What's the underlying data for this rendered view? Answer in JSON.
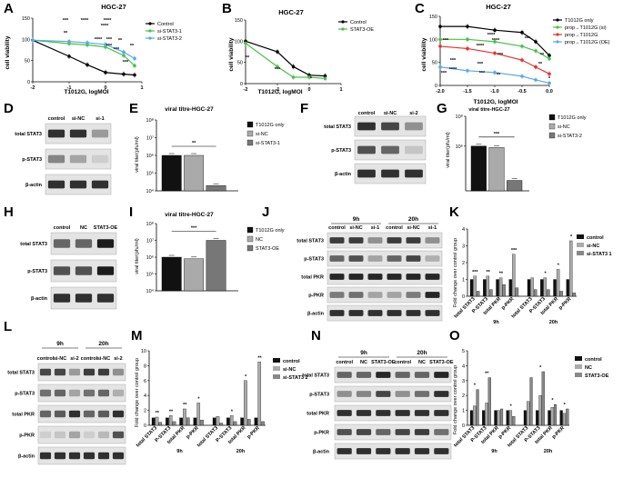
{
  "panels": {
    "A": {
      "letter": "A",
      "title": "HGC-27",
      "ylabel": "cell viability",
      "xlabel": "T1012G, logMOI",
      "yticks": [
        "150",
        "100",
        "50",
        "0"
      ],
      "xticks": [
        "-2",
        "-1",
        "0",
        "1"
      ],
      "legend": [
        "Control",
        "si-STAT3-1",
        "si-STAT3-2"
      ],
      "colors": [
        "#000000",
        "#47c247",
        "#5aa7e8"
      ],
      "stars": [
        "***",
        "**",
        "****",
        "****",
        "***",
        "***",
        "****",
        "****",
        "***",
        "**",
        "***",
        "**"
      ]
    },
    "B": {
      "letter": "B",
      "title": "HGC-27",
      "ylabel": "cell viability",
      "xlabel": "T1012G, logMOI",
      "yticks": [
        "150",
        "100",
        "50",
        "0"
      ],
      "xticks": [
        "-2",
        "-1",
        "0",
        "1"
      ],
      "legend": [
        "Control",
        "STAT3-OE"
      ],
      "colors": [
        "#000000",
        "#47c247"
      ],
      "stars": [
        "**",
        "***",
        "*"
      ]
    },
    "C": {
      "letter": "C",
      "title": "HGC-27",
      "ylabel": "cell viability",
      "xlabel": "T1012G, logMOI",
      "yticks": [
        "150",
        "100",
        "50",
        "0"
      ],
      "xticks": [
        "-2.0",
        "-1.5",
        "-1.0",
        "-0.5",
        "0.0"
      ],
      "legend": [
        "T1012G only",
        "prop→T1012G (si)",
        "prop→T1012G",
        "prop→T1012G (OE)"
      ],
      "colors": [
        "#000000",
        "#47c247",
        "#e8302a",
        "#5aa7e8"
      ],
      "stars": [
        "***",
        "***",
        "****",
        "****",
        "****",
        "****",
        "***",
        "***",
        "***",
        "**",
        "***",
        "***",
        "**",
        "**",
        "*"
      ]
    },
    "D": {
      "letter": "D",
      "lanes": [
        "control",
        "si-NC",
        "si-1"
      ],
      "rows": [
        "total STAT3",
        "p-STAT3",
        "β-actin"
      ]
    },
    "E": {
      "letter": "E",
      "title": "viral titre-HGC-27",
      "ylabel": "viral titer(pfu/ml)",
      "yticks": [
        "10⁸",
        "10⁷",
        "10⁶",
        "10⁵",
        "10⁴"
      ],
      "legend": [
        "T1012G only",
        "si-NC",
        "si-STAT3-1"
      ],
      "colors": [
        "#111111",
        "#aaaaaa",
        "#777777"
      ],
      "sig": "**"
    },
    "F": {
      "letter": "F",
      "lanes": [
        "control",
        "si-NC",
        "si-2"
      ],
      "rows": [
        "total STAT3",
        "p-STAT3",
        "β-actin"
      ]
    },
    "G": {
      "letter": "G",
      "title": "viral titre-HGC-27",
      "ylabel": "viral titer(pfu/ml)",
      "yticks": [
        "10⁸",
        "10⁶"
      ],
      "legend": [
        "T1012G only",
        "si-NC",
        "si-STAT3-2"
      ],
      "colors": [
        "#111111",
        "#aaaaaa",
        "#777777"
      ],
      "sig": "***"
    },
    "H": {
      "letter": "H",
      "lanes": [
        "control",
        "NC",
        "STAT3-OE"
      ],
      "rows": [
        "total STAT3",
        "p-STAT3",
        "β-actin"
      ]
    },
    "I": {
      "letter": "I",
      "title": "viral titre-HGC-27",
      "ylabel": "viral titer(pfu/ml)",
      "yticks": [
        "10⁸",
        "10⁷",
        "10⁶",
        "10⁵",
        "10⁴"
      ],
      "legend": [
        "T1012G only",
        "NC",
        "STAT3-OE"
      ],
      "colors": [
        "#111111",
        "#aaaaaa",
        "#777777"
      ],
      "sig": "***"
    },
    "J": {
      "letter": "J",
      "times": [
        "9h",
        "20h"
      ],
      "lanes": [
        "control",
        "si-NC",
        "si-1",
        "control",
        "si-NC",
        "si-1"
      ],
      "rows": [
        "total STAT3",
        "p-STAT3",
        "total PKR",
        "p-PKR",
        "β-actin"
      ]
    },
    "K": {
      "letter": "K",
      "ylabel": "Fold change over control group",
      "yticks": [
        "4",
        "3",
        "2",
        "1",
        "0"
      ],
      "legend": [
        "control",
        "si-NC",
        "si-STAT3 1"
      ],
      "colors": [
        "#111111",
        "#aaaaaa",
        "#888888"
      ],
      "cats": [
        "total STAT3",
        "P-STAT3",
        "total PKR",
        "p-PKR",
        "total STAT3",
        "P-STAT3",
        "total PKR",
        "p-PKR"
      ],
      "groups": [
        "9h",
        "20h"
      ],
      "stars": [
        "***",
        "**",
        "***",
        "*",
        "*",
        "*",
        "**"
      ]
    },
    "L": {
      "letter": "L",
      "times": [
        "9h",
        "20h"
      ],
      "lanes": [
        "control",
        "si-NC",
        "si-2",
        "control",
        "si-NC",
        "si-2"
      ],
      "rows": [
        "total STAT3",
        "p-STAT3",
        "total PKR",
        "p-PKR",
        "β-actin"
      ]
    },
    "M": {
      "letter": "M",
      "ylabel": "Fold change over control group",
      "yticks": [
        "10",
        "8",
        "6",
        "4",
        "2",
        "0"
      ],
      "legend": [
        "control",
        "si-NC",
        "si-STAT3 2"
      ],
      "colors": [
        "#111111",
        "#aaaaaa",
        "#888888"
      ],
      "cats": [
        "total STAT3",
        "P-STAT3",
        "total PKR",
        "p-PKR",
        "total STAT3",
        "P-STAT3",
        "total PKR",
        "p-PKR"
      ],
      "groups": [
        "9h",
        "20h"
      ],
      "stars": [
        "**",
        "**",
        "*",
        "*",
        "*",
        "**",
        "**"
      ]
    },
    "N": {
      "letter": "N",
      "times": [
        "9h",
        "20h"
      ],
      "lanes": [
        "control",
        "NC",
        "STAT3-OE",
        "control",
        "NC",
        "STAT3-OE"
      ],
      "rows": [
        "total STAT3",
        "p-STAT3",
        "total PKR",
        "p-PKR",
        "β-actin"
      ]
    },
    "O": {
      "letter": "O",
      "ylabel": "Fold change over control group",
      "yticks": [
        "5",
        "4",
        "3",
        "2",
        "1",
        "0"
      ],
      "legend": [
        "control",
        "NC",
        "STAT3-OE"
      ],
      "colors": [
        "#111111",
        "#aaaaaa",
        "#888888"
      ],
      "cats": [
        "total STAT3",
        "P-STAT3",
        "total PKR",
        "p-PKR",
        "total STAT3",
        "P-STAT3",
        "total PKR",
        "p-PKR"
      ],
      "groups": [
        "9h",
        "20h"
      ],
      "stars": [
        "*",
        "**",
        "*",
        "*",
        "*",
        "*"
      ]
    }
  },
  "chart_data": [
    {
      "panel": "A",
      "type": "line",
      "title": "HGC-27",
      "xlabel": "T1012G, logMOI",
      "ylabel": "cell viability",
      "xlim": [
        -2,
        1
      ],
      "ylim": [
        0,
        150
      ],
      "series": [
        {
          "name": "Control",
          "x": [
            -2,
            -1,
            -0.5,
            0,
            0.5,
            0.8
          ],
          "y": [
            98,
            60,
            40,
            22,
            18,
            16
          ]
        },
        {
          "name": "si-STAT3-1",
          "x": [
            -2,
            -1,
            -0.5,
            0,
            0.5,
            0.8
          ],
          "y": [
            98,
            90,
            87,
            82,
            62,
            38
          ]
        },
        {
          "name": "si-STAT3-2",
          "x": [
            -2,
            -1,
            -0.5,
            0,
            0.5,
            0.8
          ],
          "y": [
            98,
            95,
            92,
            88,
            70,
            55
          ]
        }
      ]
    },
    {
      "panel": "B",
      "type": "line",
      "title": "HGC-27",
      "xlabel": "T1012G, logMOI",
      "ylabel": "cell viability",
      "xlim": [
        -2,
        1
      ],
      "ylim": [
        0,
        150
      ],
      "series": [
        {
          "name": "Control",
          "x": [
            -2,
            -1,
            -0.5,
            0,
            0.5
          ],
          "y": [
            100,
            75,
            40,
            20,
            18
          ]
        },
        {
          "name": "STAT3-OE",
          "x": [
            -2,
            -1,
            -0.5,
            0,
            0.5
          ],
          "y": [
            95,
            40,
            15,
            15,
            12
          ]
        }
      ]
    },
    {
      "panel": "C",
      "type": "line",
      "title": "HGC-27",
      "xlabel": "T1012G, logMOI",
      "ylabel": "cell viability",
      "xlim": [
        -2,
        0
      ],
      "ylim": [
        0,
        150
      ],
      "series": [
        {
          "name": "T1012G only",
          "x": [
            -2,
            -1.5,
            -1.0,
            -0.5,
            -0.25,
            0
          ],
          "y": [
            128,
            128,
            120,
            115,
            95,
            65
          ]
        },
        {
          "name": "prop→T1012G (si)",
          "x": [
            -2,
            -1.5,
            -1.0,
            -0.5,
            -0.25,
            0
          ],
          "y": [
            100,
            100,
            95,
            85,
            75,
            58
          ]
        },
        {
          "name": "prop→T1012G",
          "x": [
            -2,
            -1.5,
            -1.0,
            -0.5,
            -0.25,
            0
          ],
          "y": [
            85,
            80,
            70,
            55,
            40,
            25
          ]
        },
        {
          "name": "prop→T1012G (OE)",
          "x": [
            -2,
            -1.5,
            -1.0,
            -0.5,
            -0.25,
            0
          ],
          "y": [
            40,
            32,
            28,
            20,
            12,
            5
          ]
        }
      ]
    },
    {
      "panel": "E",
      "type": "bar",
      "title": "viral titre-HGC-27",
      "ylabel": "viral titer(pfu/ml)",
      "yscale": "log",
      "ylim": [
        10000,
        100000000
      ],
      "categories": [
        "T1012G only",
        "si-NC",
        "si-STAT3-1"
      ],
      "values": [
        1000000,
        1000000,
        20000
      ]
    },
    {
      "panel": "G",
      "type": "bar",
      "title": "viral titre-HGC-27",
      "ylabel": "viral titer(pfu/ml)",
      "yscale": "log",
      "ylim": [
        1000,
        100000000
      ],
      "categories": [
        "T1012G only",
        "si-NC",
        "si-STAT3-2"
      ],
      "values": [
        1000000,
        800000,
        5000
      ]
    },
    {
      "panel": "I",
      "type": "bar",
      "title": "viral titre-HGC-27",
      "ylabel": "viral titer(pfu/ml)",
      "yscale": "log",
      "ylim": [
        10000,
        100000000
      ],
      "categories": [
        "T1012G only",
        "NC",
        "STAT3-OE"
      ],
      "values": [
        1000000,
        800000,
        10000000
      ]
    },
    {
      "panel": "K",
      "type": "bar",
      "ylabel": "Fold change over control group",
      "ylim": [
        0,
        4
      ],
      "categories": [
        "total STAT3",
        "P-STAT3",
        "total PKR",
        "p-PKR",
        "total STAT3",
        "P-STAT3",
        "total PKR",
        "p-PKR"
      ],
      "series": [
        {
          "name": "control",
          "values": [
            1,
            1,
            1,
            1,
            1,
            1,
            1,
            1
          ]
        },
        {
          "name": "si-NC",
          "values": [
            1.2,
            1.2,
            1.1,
            2.5,
            1.1,
            1.1,
            1.6,
            3.3
          ]
        },
        {
          "name": "si-STAT3 1",
          "values": [
            0.3,
            0.4,
            0.7,
            0.5,
            0.4,
            0.4,
            0.3,
            0.2
          ]
        }
      ]
    },
    {
      "panel": "M",
      "type": "bar",
      "ylabel": "Fold change over control group",
      "ylim": [
        0,
        10
      ],
      "categories": [
        "total STAT3",
        "P-STAT3",
        "total PKR",
        "p-PKR",
        "total STAT3",
        "P-STAT3",
        "total PKR",
        "p-PKR"
      ],
      "series": [
        {
          "name": "control",
          "values": [
            1,
            1,
            1,
            1,
            1,
            1,
            1,
            1
          ]
        },
        {
          "name": "si-NC",
          "values": [
            1.1,
            1.3,
            2.2,
            3.0,
            1.2,
            1.3,
            6.0,
            8.5
          ]
        },
        {
          "name": "si-STAT3 2",
          "values": [
            0.4,
            0.5,
            1.0,
            0.7,
            0.3,
            0.5,
            0.8,
            0.5
          ]
        }
      ]
    },
    {
      "panel": "O",
      "type": "bar",
      "ylabel": "Fold change over control group",
      "ylim": [
        0,
        5
      ],
      "categories": [
        "total STAT3",
        "P-STAT3",
        "total PKR",
        "p-PKR",
        "total STAT3",
        "P-STAT3",
        "total PKR",
        "p-PKR"
      ],
      "series": [
        {
          "name": "control",
          "values": [
            1,
            1,
            1,
            1,
            1,
            1,
            1,
            1
          ]
        },
        {
          "name": "NC",
          "values": [
            1.3,
            1.5,
            1.0,
            1.0,
            1.6,
            2.0,
            1.2,
            0.8
          ]
        },
        {
          "name": "STAT3-OE",
          "values": [
            2.4,
            3.2,
            1.1,
            0.6,
            3.2,
            3.6,
            1.4,
            1.1
          ]
        }
      ]
    }
  ]
}
